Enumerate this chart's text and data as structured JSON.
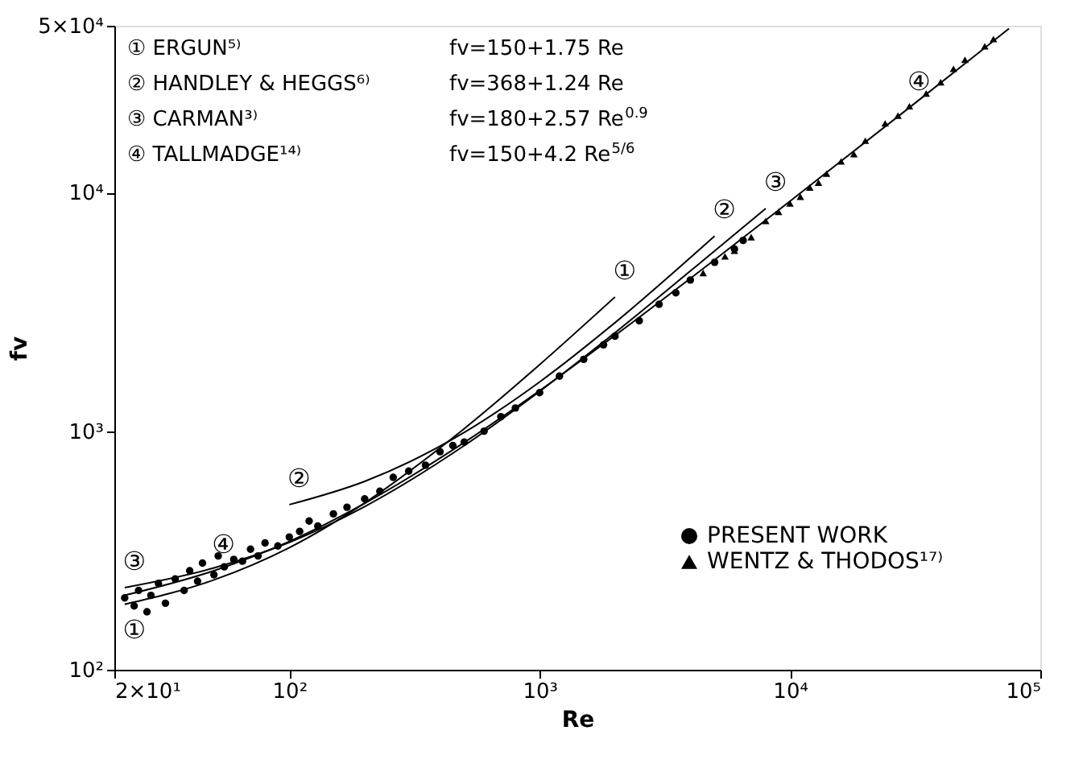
{
  "chart_data": {
    "type": "scatter",
    "xlabel": "Re",
    "ylabel": "fv",
    "log": "xy",
    "grid": false,
    "legend": "bottom right",
    "xlim": [
      20,
      100000
    ],
    "ylim": [
      100,
      50000
    ],
    "xticks": [
      {
        "value": 20,
        "label": "2×10¹"
      },
      {
        "value": 100,
        "label": "10²"
      },
      {
        "value": 1000,
        "label": "10³"
      },
      {
        "value": 10000,
        "label": "10⁴"
      },
      {
        "value": 100000,
        "label": "10⁵"
      }
    ],
    "yticks": [
      {
        "value": 100,
        "label": "10²"
      },
      {
        "value": 1000,
        "label": "10³"
      },
      {
        "value": 10000,
        "label": "10⁴"
      },
      {
        "value": 50000,
        "label": "5×10⁴"
      }
    ],
    "series": [
      {
        "name": "PRESENT WORK",
        "marker": "circle",
        "color": "#000000",
        "x": [
          22,
          24,
          25,
          27,
          28,
          30,
          32,
          35,
          38,
          40,
          43,
          45,
          50,
          52,
          55,
          60,
          65,
          70,
          75,
          80,
          90,
          100,
          110,
          120,
          130,
          150,
          170,
          200,
          230,
          260,
          300,
          350,
          400,
          450,
          500,
          600,
          700,
          800,
          1000,
          1200,
          1500,
          1800,
          2000,
          2500,
          3000,
          3500,
          4000,
          5000,
          6000,
          6500
        ],
        "values": [
          200,
          185,
          215,
          175,
          205,
          230,
          190,
          240,
          215,
          260,
          235,
          280,
          250,
          300,
          270,
          290,
          285,
          320,
          300,
          340,
          330,
          360,
          380,
          420,
          400,
          450,
          480,
          520,
          560,
          640,
          680,
          720,
          820,
          870,
          900,
          1000,
          1150,
          1250,
          1450,
          1700,
          2000,
          2300,
          2500,
          2900,
          3400,
          3800,
          4300,
          5100,
          5800,
          6300
        ]
      },
      {
        "name": "WENTZ & THODOS¹⁷⁾",
        "marker": "triangle",
        "color": "#000000",
        "x": [
          4500,
          5500,
          6000,
          7000,
          8000,
          9000,
          10000,
          11000,
          12000,
          13000,
          14000,
          16000,
          18000,
          20000,
          24000,
          27000,
          30000,
          35000,
          40000,
          45000,
          50000,
          60000,
          65000
        ],
        "values": [
          4600,
          5400,
          5700,
          6500,
          7600,
          8300,
          9000,
          9600,
          10500,
          11000,
          12000,
          13500,
          14500,
          16500,
          19500,
          21000,
          23000,
          26000,
          29000,
          33000,
          36000,
          41000,
          44000
        ]
      },
      {
        "type": "line",
        "line_style": "solid",
        "color": "#000000",
        "x": [
          22,
          50,
          100,
          200,
          500,
          1000,
          2000
        ],
        "values": [
          188,
          238,
          325,
          500,
          1025,
          1900,
          3650
        ]
      },
      {
        "type": "line",
        "line_style": "solid",
        "color": "#000000",
        "x": [
          100,
          200,
          500,
          1000,
          2000,
          5000
        ],
        "values": [
          492,
          616,
          988,
          1608,
          2848,
          6568
        ]
      },
      {
        "type": "line",
        "line_style": "solid",
        "color": "#000000",
        "x": [
          22,
          50,
          100,
          200,
          500,
          1000,
          2000,
          5000,
          8000
        ],
        "values": [
          221,
          267,
          342,
          483,
          870,
          1468,
          2584,
          5693,
          8569
        ]
      },
      {
        "type": "line",
        "line_style": "solid",
        "color": "#000000",
        "x": [
          22,
          50,
          100,
          200,
          500,
          1000,
          2000,
          5000,
          10000,
          30000,
          60000,
          75000
        ],
        "values": [
          205,
          260,
          345,
          498,
          897,
          1478,
          2519,
          5228,
          9198,
          22700,
          40400,
          48660
        ]
      }
    ],
    "annotations": [
      "① ERGUN⁵⁾",
      "② HANDLEY & HEGGS⁶⁾",
      "③ CARMAN³⁾",
      "④ TALLMADGE¹⁴⁾",
      "fv=150+1.75 Re",
      "fv=368+1.24 Re",
      "fv=180+2.57 Re$^{0.9}$",
      "fv=150+4.2 Re$^{5/6}$",
      {
        "text": "①",
        "x": 22,
        "y": 188
      },
      {
        "text": "③",
        "x": 22,
        "y": 221
      },
      {
        "text": "④",
        "x": 50,
        "y": 260
      },
      {
        "text": "②",
        "x": 100,
        "y": 492
      },
      {
        "text": "①",
        "x": 2000,
        "y": 3650
      },
      {
        "text": "②",
        "x": 5000,
        "y": 6568
      },
      {
        "text": "③",
        "x": 8000,
        "y": 8569
      },
      {
        "text": "④",
        "x": 30000,
        "y": 22700
      }
    ]
  }
}
